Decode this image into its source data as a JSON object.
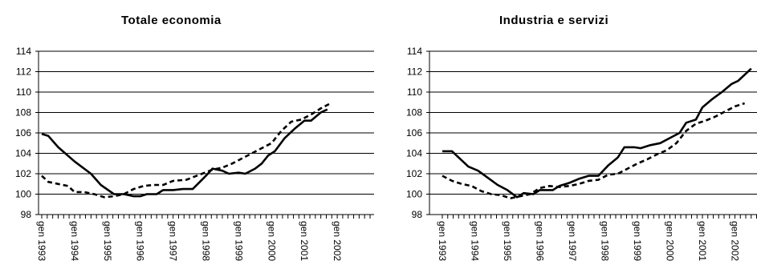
{
  "chart_data": [
    {
      "type": "line",
      "title": "Totale economia",
      "xlabel": "",
      "ylabel": "",
      "ylim": [
        98,
        114
      ],
      "yticks": [
        98,
        100,
        102,
        104,
        106,
        108,
        110,
        112,
        114
      ],
      "x_range": [
        1993,
        2002.5
      ],
      "x_tick_labels": [
        "gen 1993",
        "gen 1994",
        "gen 1995",
        "gen 1996",
        "gen 1997",
        "gen 1998",
        "gen 1999",
        "gen 2000",
        "gen 2001",
        "gen 2002"
      ],
      "x_tick_positions": [
        1993,
        1994,
        1995,
        1996,
        1997,
        1998,
        1999,
        2000,
        2001,
        2002
      ],
      "grid": true,
      "legend": "none",
      "series": [
        {
          "style": "solid",
          "points": [
            [
              1993.0,
              105.9
            ],
            [
              1993.2,
              105.7
            ],
            [
              1993.5,
              104.6
            ],
            [
              1994.0,
              103.2
            ],
            [
              1994.5,
              102.0
            ],
            [
              1994.8,
              100.9
            ],
            [
              1995.2,
              100.0
            ],
            [
              1995.5,
              100.0
            ],
            [
              1995.8,
              99.8
            ],
            [
              1996.0,
              99.8
            ],
            [
              1996.2,
              100.0
            ],
            [
              1996.5,
              100.0
            ],
            [
              1996.7,
              100.4
            ],
            [
              1997.0,
              100.4
            ],
            [
              1997.3,
              100.5
            ],
            [
              1997.6,
              100.5
            ],
            [
              1998.0,
              101.8
            ],
            [
              1998.2,
              102.5
            ],
            [
              1998.5,
              102.3
            ],
            [
              1998.7,
              102.0
            ],
            [
              1999.0,
              102.1
            ],
            [
              1999.2,
              102.0
            ],
            [
              1999.5,
              102.5
            ],
            [
              1999.7,
              103.0
            ],
            [
              1999.9,
              103.8
            ],
            [
              2000.1,
              104.2
            ],
            [
              2000.4,
              105.5
            ],
            [
              2000.7,
              106.4
            ],
            [
              2001.0,
              107.2
            ],
            [
              2001.2,
              107.2
            ],
            [
              2001.5,
              108.0
            ],
            [
              2001.7,
              108.3
            ]
          ]
        },
        {
          "style": "dashed",
          "points": [
            [
              1993.0,
              101.8
            ],
            [
              1993.2,
              101.2
            ],
            [
              1993.5,
              101.0
            ],
            [
              1993.8,
              100.8
            ],
            [
              1994.0,
              100.2
            ],
            [
              1994.3,
              100.2
            ],
            [
              1994.6,
              100.0
            ],
            [
              1994.9,
              99.7
            ],
            [
              1995.2,
              99.8
            ],
            [
              1995.5,
              100.0
            ],
            [
              1995.8,
              100.5
            ],
            [
              1996.1,
              100.8
            ],
            [
              1996.4,
              100.9
            ],
            [
              1996.7,
              100.9
            ],
            [
              1997.0,
              101.3
            ],
            [
              1997.4,
              101.4
            ],
            [
              1997.8,
              101.9
            ],
            [
              1998.2,
              102.4
            ],
            [
              1998.5,
              102.6
            ],
            [
              1998.8,
              103.0
            ],
            [
              1999.1,
              103.5
            ],
            [
              1999.4,
              104.0
            ],
            [
              1999.7,
              104.5
            ],
            [
              2000.0,
              105.0
            ],
            [
              2000.3,
              106.2
            ],
            [
              2000.6,
              107.1
            ],
            [
              2000.9,
              107.3
            ],
            [
              2001.2,
              107.8
            ],
            [
              2001.5,
              108.4
            ],
            [
              2001.8,
              108.9
            ]
          ]
        }
      ]
    },
    {
      "type": "line",
      "title": "Industria e servizi",
      "xlabel": "",
      "ylabel": "",
      "ylim": [
        98,
        114
      ],
      "yticks": [
        98,
        100,
        102,
        104,
        106,
        108,
        110,
        112,
        114
      ],
      "x_range": [
        1993,
        2002.5
      ],
      "x_tick_labels": [
        "gen 1993",
        "gen 1994",
        "gen 1995",
        "gen 1996",
        "gen 1997",
        "gen 1998",
        "gen 1999",
        "gen 2000",
        "gen 2001",
        "gen 2002"
      ],
      "x_tick_positions": [
        1993,
        1994,
        1995,
        1996,
        1997,
        1998,
        1999,
        2000,
        2001,
        2002
      ],
      "grid": true,
      "legend": "none",
      "series": [
        {
          "style": "solid",
          "points": [
            [
              1993.0,
              104.2
            ],
            [
              1993.3,
              104.2
            ],
            [
              1993.6,
              103.3
            ],
            [
              1993.8,
              102.7
            ],
            [
              1994.1,
              102.3
            ],
            [
              1994.4,
              101.6
            ],
            [
              1994.7,
              100.9
            ],
            [
              1995.0,
              100.4
            ],
            [
              1995.3,
              99.7
            ],
            [
              1995.5,
              100.1
            ],
            [
              1995.8,
              100.0
            ],
            [
              1996.0,
              100.4
            ],
            [
              1996.4,
              100.4
            ],
            [
              1996.6,
              100.8
            ],
            [
              1996.9,
              101.1
            ],
            [
              1997.2,
              101.5
            ],
            [
              1997.5,
              101.8
            ],
            [
              1997.8,
              101.8
            ],
            [
              1998.1,
              102.8
            ],
            [
              1998.4,
              103.6
            ],
            [
              1998.6,
              104.6
            ],
            [
              1998.9,
              104.6
            ],
            [
              1999.1,
              104.5
            ],
            [
              1999.4,
              104.8
            ],
            [
              1999.7,
              105.0
            ],
            [
              2000.0,
              105.5
            ],
            [
              2000.3,
              106.0
            ],
            [
              2000.5,
              107.0
            ],
            [
              2000.8,
              107.3
            ],
            [
              2001.0,
              108.5
            ],
            [
              2001.3,
              109.3
            ],
            [
              2001.6,
              110.0
            ],
            [
              2001.9,
              110.8
            ],
            [
              2002.1,
              111.1
            ],
            [
              2002.5,
              112.3
            ]
          ]
        },
        {
          "style": "dashed",
          "points": [
            [
              1993.0,
              101.8
            ],
            [
              1993.3,
              101.3
            ],
            [
              1993.6,
              101.0
            ],
            [
              1993.9,
              100.8
            ],
            [
              1994.2,
              100.3
            ],
            [
              1994.5,
              100.0
            ],
            [
              1994.8,
              99.9
            ],
            [
              1995.1,
              99.6
            ],
            [
              1995.4,
              99.8
            ],
            [
              1995.7,
              100.0
            ],
            [
              1996.0,
              100.6
            ],
            [
              1996.3,
              100.8
            ],
            [
              1996.6,
              100.7
            ],
            [
              1996.9,
              100.8
            ],
            [
              1997.2,
              101.0
            ],
            [
              1997.5,
              101.3
            ],
            [
              1997.8,
              101.4
            ],
            [
              1998.1,
              101.9
            ],
            [
              1998.4,
              102.0
            ],
            [
              1998.7,
              102.5
            ],
            [
              1999.0,
              103.0
            ],
            [
              1999.3,
              103.4
            ],
            [
              1999.6,
              103.9
            ],
            [
              1999.9,
              104.3
            ],
            [
              2000.2,
              105.0
            ],
            [
              2000.5,
              106.2
            ],
            [
              2000.8,
              106.9
            ],
            [
              2001.1,
              107.2
            ],
            [
              2001.4,
              107.6
            ],
            [
              2001.7,
              108.1
            ],
            [
              2002.0,
              108.6
            ],
            [
              2002.3,
              108.9
            ]
          ]
        }
      ]
    }
  ]
}
